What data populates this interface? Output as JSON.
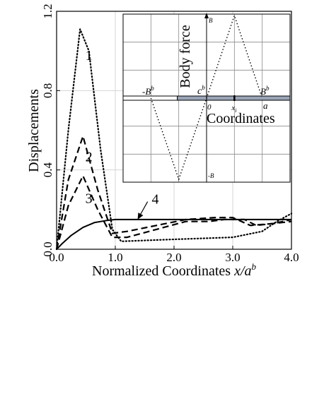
{
  "chart_data": [
    {
      "type": "line",
      "xlabel_main": "Normalized Coordinates ",
      "xlabel_var": "x/a",
      "xlabel_sup": "b",
      "ylabel": "Displacements",
      "xlim": [
        0,
        4
      ],
      "ylim": [
        0,
        1.2
      ],
      "xticks": [
        {
          "v": 0,
          "label": "0.0"
        },
        {
          "v": 1,
          "label": "1.0"
        },
        {
          "v": 2,
          "label": "2.0"
        },
        {
          "v": 3,
          "label": "3.0"
        },
        {
          "v": 4,
          "label": "4.0"
        }
      ],
      "yticks": [
        {
          "v": 0,
          "label": "0.0"
        },
        {
          "v": 0.4,
          "label": "0.4"
        },
        {
          "v": 0.8,
          "label": "0.8"
        },
        {
          "v": 1.2,
          "label": "1.2"
        }
      ],
      "grid": true,
      "series": [
        {
          "label": "1",
          "style": "dotted",
          "label_at": [
            0.55,
            0.97
          ],
          "points": [
            [
              0,
              0
            ],
            [
              0.2,
              0.6
            ],
            [
              0.4,
              1.11
            ],
            [
              0.55,
              1.0
            ],
            [
              0.75,
              0.5
            ],
            [
              0.95,
              0.1
            ],
            [
              1.1,
              0.04
            ],
            [
              2.0,
              0.05
            ],
            [
              3.0,
              0.06
            ],
            [
              3.5,
              0.09
            ],
            [
              3.75,
              0.14
            ],
            [
              4.0,
              0.18
            ]
          ]
        },
        {
          "label": "2",
          "style": "dashed",
          "label_at": [
            0.55,
            0.46
          ],
          "points": [
            [
              0,
              0
            ],
            [
              0.2,
              0.35
            ],
            [
              0.45,
              0.57
            ],
            [
              0.7,
              0.3
            ],
            [
              0.95,
              0.08
            ],
            [
              1.2,
              0.09
            ],
            [
              1.7,
              0.12
            ],
            [
              2.2,
              0.15
            ],
            [
              2.7,
              0.16
            ],
            [
              3.0,
              0.16
            ],
            [
              3.3,
              0.12
            ],
            [
              3.7,
              0.13
            ],
            [
              4.0,
              0.15
            ]
          ]
        },
        {
          "label": "3",
          "style": "dashed",
          "label_at": [
            0.55,
            0.25
          ],
          "points": [
            [
              0,
              0
            ],
            [
              0.2,
              0.22
            ],
            [
              0.45,
              0.37
            ],
            [
              0.7,
              0.2
            ],
            [
              0.95,
              0.06
            ],
            [
              1.2,
              0.06
            ],
            [
              1.7,
              0.1
            ],
            [
              2.2,
              0.14
            ],
            [
              2.6,
              0.14
            ],
            [
              2.85,
              0.15
            ],
            [
              3.2,
              0.15
            ],
            [
              3.4,
              0.12
            ],
            [
              3.7,
              0.13
            ],
            [
              4.0,
              0.14
            ]
          ]
        },
        {
          "label": "4",
          "style": "solid",
          "points": [
            [
              0,
              0
            ],
            [
              0.1,
              0.03
            ],
            [
              0.25,
              0.07
            ],
            [
              0.45,
              0.11
            ],
            [
              0.65,
              0.135
            ],
            [
              0.85,
              0.145
            ],
            [
              1.0,
              0.15
            ],
            [
              4.0,
              0.15
            ]
          ]
        }
      ],
      "annotation_4": {
        "label": "4",
        "text_at": [
          1.62,
          0.255
        ],
        "arrow_from": [
          1.55,
          0.24
        ],
        "arrow_to": [
          1.38,
          0.15
        ]
      }
    },
    {
      "type": "line",
      "ylabel": "Body force",
      "xlabel": "Coordinates",
      "xlim": [
        -3,
        3
      ],
      "ylim": [
        -1,
        1
      ],
      "labels": {
        "top": "B",
        "bottom": "-B",
        "neg_bb": "-B",
        "neg_bb_sup": "b",
        "cb": "c",
        "cb_sup": "b",
        "zero": "0",
        "xi": "x",
        "xi_sub": "i",
        "bb": "B",
        "bb_sup": "b",
        "a": "a"
      },
      "points": [
        [
          -2,
          0
        ],
        [
          -1,
          -1
        ],
        [
          0,
          0
        ],
        [
          1,
          1
        ],
        [
          2,
          0
        ]
      ]
    }
  ]
}
